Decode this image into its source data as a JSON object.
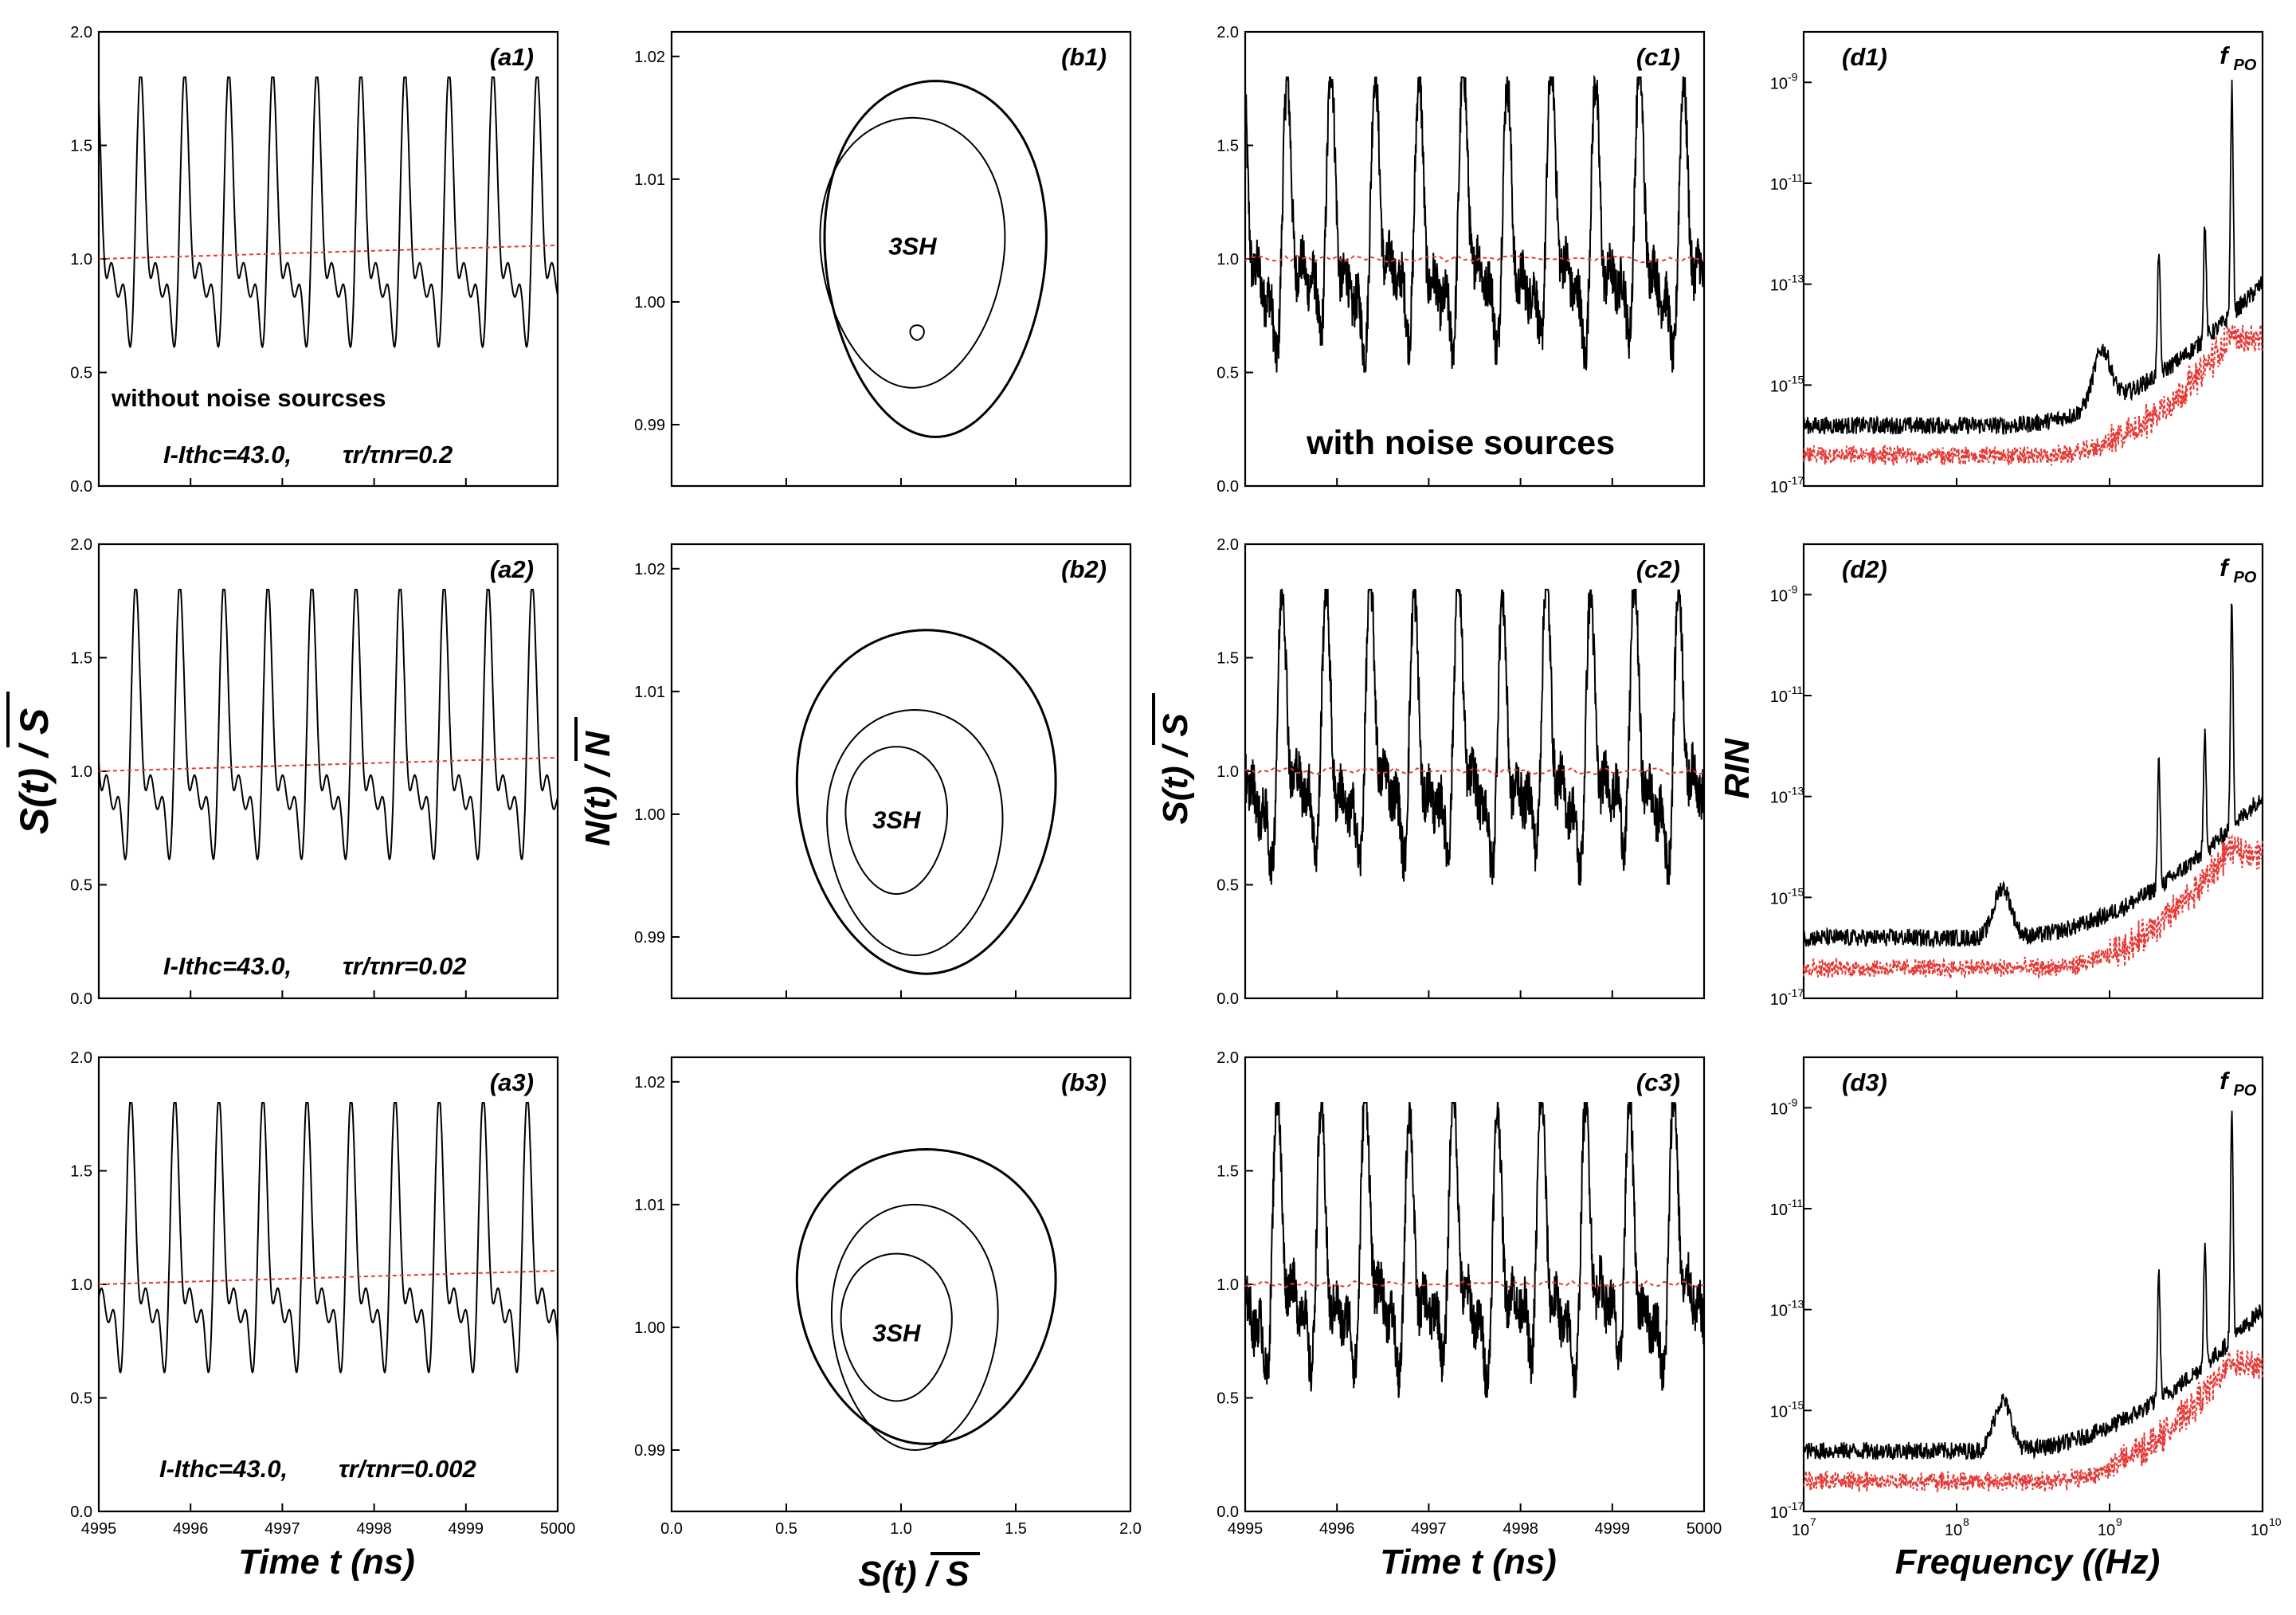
{
  "chart_data": {
    "type": "line",
    "figure": "Semiconductor laser dynamics: 3SH (period-3 subharmonic) self-pulsation, time series, phase portraits and RIN spectra",
    "rows": [
      {
        "current_label": "I-Ithc=43.0,",
        "ratio_label": "τr/τnr=0.2"
      },
      {
        "current_label": "I-Ithc=43.0,",
        "ratio_label": "τr/τnr=0.02"
      },
      {
        "current_label": "I-Ithc=43.0,",
        "ratio_label": "τr/τnr=0.002"
      }
    ],
    "columns": {
      "a": {
        "panels": [
          "(a1)",
          "(a2)",
          "(a3)"
        ],
        "type": "line",
        "note": "without noise sourcses",
        "xlim": [
          4995,
          5000
        ],
        "xticks": [
          "4995",
          "4996",
          "4997",
          "4998",
          "4999",
          "5000"
        ],
        "ylim": [
          0.0,
          2.0
        ],
        "yticks": [
          "0.0",
          "0.5",
          "1.0",
          "1.5",
          "2.0"
        ],
        "xlabel": "Time t (ns)",
        "ylabel": "S(t) / S",
        "series": [
          {
            "name": "S(t)/S",
            "color": "#000000",
            "period_ns": 0.48,
            "harmonics": [
              0.35,
              0.3,
              0.17
            ],
            "mean": 1.05
          },
          {
            "name": "running mean",
            "color": "#e53935",
            "start": 1.0,
            "end": 1.06
          }
        ]
      },
      "b": {
        "panels": [
          "(b1)",
          "(b2)",
          "(b3)"
        ],
        "type": "phase-portrait",
        "orbit_label": "3SH",
        "xlim": [
          0.0,
          2.0
        ],
        "xticks": [
          "0.0",
          "0.5",
          "1.0",
          "1.5",
          "2.0"
        ],
        "ylim": [
          0.985,
          1.022
        ],
        "yticks": [
          "0.99",
          "1.00",
          "1.01",
          "1.02"
        ],
        "xlabel": "S(t) / S",
        "ylabel": "N(t) / N",
        "loops": [
          [
            {
              "cx": 1.15,
              "cy": 1.0035,
              "rx": 0.48,
              "ry": 0.0145
            },
            {
              "cx": 1.05,
              "cy": 1.004,
              "rx": 0.4,
              "ry": 0.011
            },
            {
              "cx": 1.07,
              "cy": 0.9975,
              "rx": 0.03,
              "ry": 0.0006
            }
          ],
          [
            {
              "cx": 1.11,
              "cy": 1.001,
              "rx": 0.56,
              "ry": 0.014
            },
            {
              "cx": 1.06,
              "cy": 0.9985,
              "rx": 0.38,
              "ry": 0.01
            },
            {
              "cx": 0.98,
              "cy": 0.9995,
              "rx": 0.22,
              "ry": 0.006
            }
          ],
          [
            {
              "cx": 1.11,
              "cy": 1.0025,
              "rx": 0.56,
              "ry": 0.012
            },
            {
              "cx": 1.06,
              "cy": 1.0,
              "rx": 0.36,
              "ry": 0.01
            },
            {
              "cx": 0.98,
              "cy": 1.0,
              "rx": 0.24,
              "ry": 0.006
            }
          ]
        ]
      },
      "c": {
        "panels": [
          "(c1)",
          "(c2)",
          "(c3)"
        ],
        "type": "line",
        "note": "with noise sources",
        "xlim": [
          4995,
          5000
        ],
        "xticks": [
          "4995",
          "4996",
          "4997",
          "4998",
          "4999",
          "5000"
        ],
        "ylim": [
          0.0,
          2.0
        ],
        "yticks": [
          "0.0",
          "0.5",
          "1.0",
          "1.5",
          "2.0"
        ],
        "xlabel": "Time t (ns)",
        "ylabel": "S(t) / S",
        "series": [
          {
            "name": "S(t)/S noisy",
            "color": "#000000",
            "period_ns": 0.48,
            "mean": 1.05,
            "noise": 0.08
          },
          {
            "name": "running mean",
            "color": "#e53935",
            "level": 1.0
          }
        ]
      },
      "d": {
        "panels": [
          "(d1)",
          "(d2)",
          "(d3)"
        ],
        "type": "line-log",
        "peak_label": "f",
        "peak_sub": "PO",
        "xscale": "log",
        "xlim": [
          10000000.0,
          10000000000.0
        ],
        "xticks_base": [
          "10",
          "10",
          "10",
          "10"
        ],
        "xticks_exp": [
          "7",
          "8",
          "9",
          "10"
        ],
        "ylim": [
          1e-17,
          1e-08
        ],
        "yticks_base": [
          "10",
          "10",
          "10",
          "10",
          "10"
        ],
        "yticks_exp": [
          "-9",
          "-11",
          "-13",
          "-15",
          "-17"
        ],
        "xlabel": "Frequency ((Hz)",
        "ylabel": "RIN",
        "series": [
          {
            "name": "RIN (with noise, S)",
            "color": "#000000",
            "floor_exp": -15.8,
            "peaks_GHz": [
              2.1,
              4.2,
              6.3
            ],
            "peak_exp": -9
          },
          {
            "name": "RIN (without noise)",
            "color": "#e53935",
            "floor_exp": -16.4,
            "top_exp": -13.8
          }
        ]
      }
    }
  }
}
